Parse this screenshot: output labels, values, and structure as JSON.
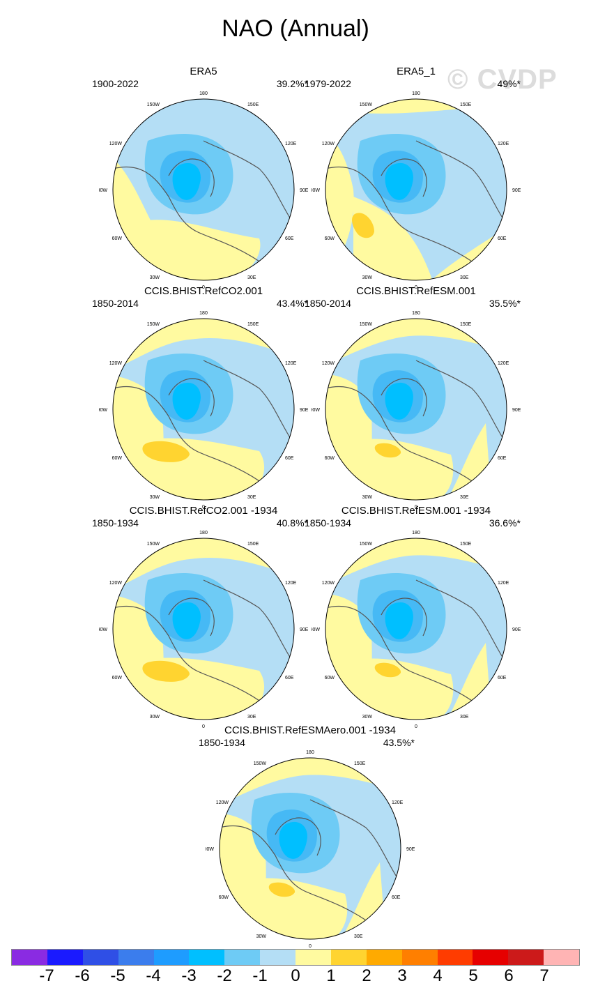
{
  "figure": {
    "title": "NAO (Annual)",
    "watermark": "© CVDP"
  },
  "axis_labels": {
    "top": "180",
    "bottom": "0",
    "left": "90W",
    "right": "90E",
    "ul": "120W",
    "ur": "120E",
    "ull": "150W",
    "urr": "150E",
    "ll": "60W",
    "lr": "60E",
    "lll": "30W",
    "lrr": "30E"
  },
  "panels": [
    {
      "title": "ERA5",
      "years": "1900-2022",
      "pct": "39.2%*",
      "variant": 0
    },
    {
      "title": "ERA5_1",
      "years": "1979-2022",
      "pct": "49%*",
      "variant": 1
    },
    {
      "title": "CCIS.BHIST.RefCO2.001",
      "years": "1850-2014",
      "pct": "43.4%*",
      "variant": 2
    },
    {
      "title": "CCIS.BHIST.RefESM.001",
      "years": "1850-2014",
      "pct": "35.5%*",
      "variant": 3
    },
    {
      "title": "CCIS.BHIST.RefCO2.001 -1934",
      "years": "1850-1934",
      "pct": "40.8%*",
      "variant": 2
    },
    {
      "title": "CCIS.BHIST.RefESM.001 -1934",
      "years": "1850-1934",
      "pct": "36.6%*",
      "variant": 3
    },
    {
      "title": "CCIS.BHIST.RefESMAero.001 -1934",
      "years": "1850-1934",
      "pct": "43.5%*",
      "variant": 3
    }
  ],
  "colorbar": {
    "colors": [
      "#8a2be2",
      "#1a1aff",
      "#2f4fe6",
      "#3b7ded",
      "#1e9cff",
      "#00bfff",
      "#6ecbf5",
      "#b4def5",
      "#fffaa0",
      "#ffd430",
      "#ffaa00",
      "#ff7f00",
      "#ff3c00",
      "#e60000",
      "#cc1a1a",
      "#ffb4b4"
    ],
    "labels": [
      "-7",
      "-6",
      "-5",
      "-4",
      "-3",
      "-2",
      "-1",
      "0",
      "1",
      "2",
      "3",
      "4",
      "5",
      "6",
      "7"
    ]
  }
}
